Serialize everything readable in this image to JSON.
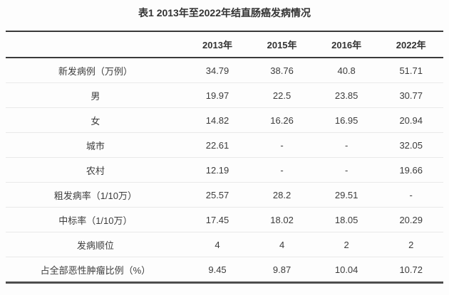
{
  "title": "表1 2013年至2022年结直肠癌发病情况",
  "table": {
    "columns": [
      "",
      "2013年",
      "2015年",
      "2016年",
      "2022年"
    ],
    "rows": [
      {
        "label": "新发病例（万例）",
        "values": [
          "34.79",
          "38.76",
          "40.8",
          "51.71"
        ]
      },
      {
        "label": "男",
        "values": [
          "19.97",
          "22.5",
          "23.85",
          "30.77"
        ]
      },
      {
        "label": "女",
        "values": [
          "14.82",
          "16.26",
          "16.95",
          "20.94"
        ]
      },
      {
        "label": "城市",
        "values": [
          "22.61",
          "-",
          "-",
          "32.05"
        ]
      },
      {
        "label": "农村",
        "values": [
          "12.19",
          "-",
          "-",
          "19.66"
        ]
      },
      {
        "label": "粗发病率（1/10万）",
        "values": [
          "25.57",
          "28.2",
          "29.51",
          "-"
        ]
      },
      {
        "label": "中标率（1/10万）",
        "values": [
          "17.45",
          "18.02",
          "18.05",
          "20.29"
        ]
      },
      {
        "label": "发病顺位",
        "values": [
          "4",
          "4",
          "2",
          "2"
        ]
      },
      {
        "label": "占全部恶性肿瘤比例（%）",
        "values": [
          "9.45",
          "9.87",
          "10.04",
          "10.72"
        ]
      }
    ]
  }
}
